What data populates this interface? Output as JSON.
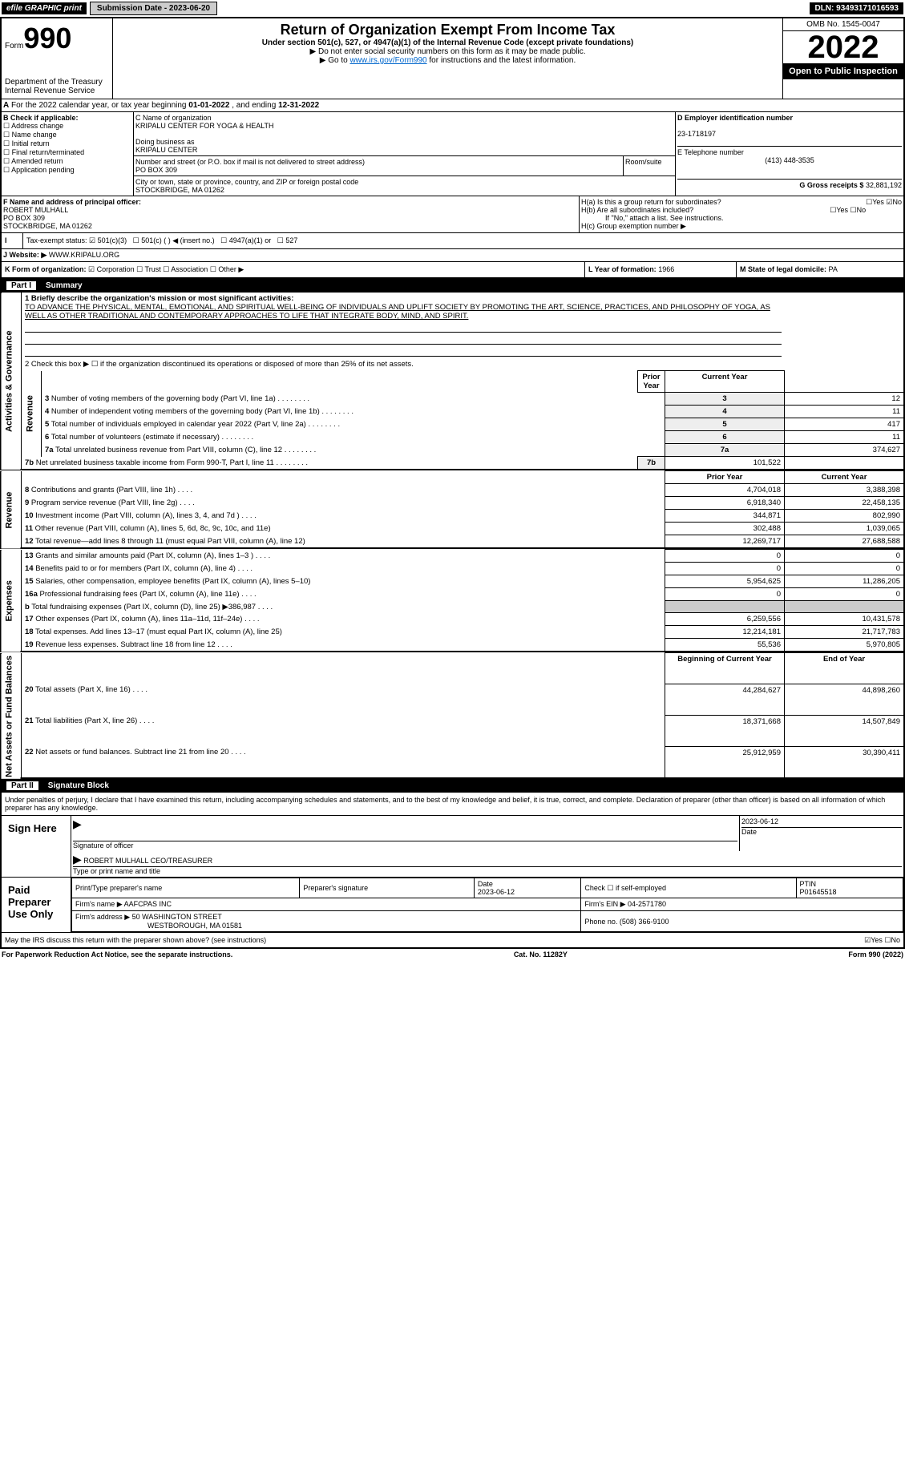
{
  "header": {
    "efile": "efile GRAPHIC print",
    "submission": "Submission Date - 2023-06-20",
    "dln": "DLN: 93493171016593"
  },
  "form": {
    "form_label": "Form",
    "form_number": "990",
    "title": "Return of Organization Exempt From Income Tax",
    "subtitle": "Under section 501(c), 527, or 4947(a)(1) of the Internal Revenue Code (except private foundations)",
    "note1": "▶ Do not enter social security numbers on this form as it may be made public.",
    "note2": "▶ Go to",
    "link": "www.irs.gov/Form990",
    "note3": "for instructions and the latest information.",
    "dept": "Department of the Treasury\nInternal Revenue Service",
    "omb": "OMB No. 1545-0047",
    "year": "2022",
    "inspection": "Open to Public Inspection"
  },
  "row_a": {
    "label": "A",
    "text": "For the 2022 calendar year, or tax year beginning",
    "begin": "01-01-2022",
    "mid": ", and ending",
    "end": "12-31-2022"
  },
  "section_b": {
    "b_label": "B Check if applicable:",
    "b_items": [
      "Address change",
      "Name change",
      "Initial return",
      "Final return/terminated",
      "Amended return",
      "Application pending"
    ],
    "c_name_label": "C Name of organization",
    "c_name": "KRIPALU CENTER FOR YOGA & HEALTH",
    "c_dba_label": "Doing business as",
    "c_dba": "KRIPALU CENTER",
    "c_addr_label": "Number and street (or P.O. box if mail is not delivered to street address)",
    "c_addr": "PO BOX 309",
    "c_room": "Room/suite",
    "c_city_label": "City or town, state or province, country, and ZIP or foreign postal code",
    "c_city": "STOCKBRIDGE, MA  01262",
    "d_label": "D Employer identification number",
    "d_ein": "23-1718197",
    "e_label": "E Telephone number",
    "e_phone": "(413) 448-3535",
    "g_label": "G Gross receipts $",
    "g_amount": "32,881,192"
  },
  "section_f": {
    "f_label": "F Name and address of principal officer:",
    "f_name": "ROBERT MULHALL",
    "f_addr1": "PO BOX 309",
    "f_addr2": "STOCKBRIDGE, MA  01262",
    "h_a": "H(a)  Is this a group return for subordinates?",
    "h_b": "H(b)  Are all subordinates included?",
    "h_b_note": "If \"No,\" attach a list. See instructions.",
    "h_c": "H(c)  Group exemption number ▶",
    "yes": "Yes",
    "no": "No"
  },
  "section_i": {
    "i_label": "I",
    "tax_exempt": "Tax-exempt status:",
    "opt1": "501(c)(3)",
    "opt2": "501(c) (  ) ◀ (insert no.)",
    "opt3": "4947(a)(1) or",
    "opt4": "527"
  },
  "section_j": {
    "j_label": "J",
    "website_label": "Website: ▶",
    "website": "WWW.KRIPALU.ORG"
  },
  "section_k": {
    "k_label": "K Form of organization:",
    "k_opts": [
      "Corporation",
      "Trust",
      "Association",
      "Other ▶"
    ],
    "l_label": "L Year of formation:",
    "l_year": "1966",
    "m_label": "M State of legal domicile:",
    "m_state": "PA"
  },
  "part1": {
    "header_num": "Part I",
    "header_title": "Summary",
    "line1_label": "1 Briefly describe the organization's mission or most significant activities:",
    "line1_text": "TO ADVANCE THE PHYSICAL, MENTAL, EMOTIONAL, AND SPIRITUAL WELL-BEING OF INDIVIDUALS AND UPLIFT SOCIETY BY PROMOTING THE ART, SCIENCE, PRACTICES, AND PHILOSOPHY OF YOGA, AS WELL AS OTHER TRADITIONAL AND CONTEMPORARY APPROACHES TO LIFE THAT INTEGRATE BODY, MIND, AND SPIRIT.",
    "line2": "2  Check this box ▶ ☐  if the organization discontinued its operations or disposed of more than 25% of its net assets.",
    "rows_gov": [
      {
        "n": "3",
        "t": "Number of voting members of the governing body (Part VI, line 1a)",
        "v": "12"
      },
      {
        "n": "4",
        "t": "Number of independent voting members of the governing body (Part VI, line 1b)",
        "v": "11"
      },
      {
        "n": "5",
        "t": "Total number of individuals employed in calendar year 2022 (Part V, line 2a)",
        "v": "417"
      },
      {
        "n": "6",
        "t": "Total number of volunteers (estimate if necessary)",
        "v": "11"
      },
      {
        "n": "7a",
        "t": "Total unrelated business revenue from Part VIII, column (C), line 12",
        "v": "374,627"
      },
      {
        "n": "7b",
        "t": "Net unrelated business taxable income from Form 990-T, Part I, line 11",
        "v": "101,522"
      }
    ],
    "col_headers": {
      "prior": "Prior Year",
      "current": "Current Year"
    },
    "rows_rev": [
      {
        "n": "8",
        "t": "Contributions and grants (Part VIII, line 1h)",
        "p": "4,704,018",
        "c": "3,388,398"
      },
      {
        "n": "9",
        "t": "Program service revenue (Part VIII, line 2g)",
        "p": "6,918,340",
        "c": "22,458,135"
      },
      {
        "n": "10",
        "t": "Investment income (Part VIII, column (A), lines 3, 4, and 7d )",
        "p": "344,871",
        "c": "802,990"
      },
      {
        "n": "11",
        "t": "Other revenue (Part VIII, column (A), lines 5, 6d, 8c, 9c, 10c, and 11e)",
        "p": "302,488",
        "c": "1,039,065"
      },
      {
        "n": "12",
        "t": "Total revenue—add lines 8 through 11 (must equal Part VIII, column (A), line 12)",
        "p": "12,269,717",
        "c": "27,688,588"
      }
    ],
    "rows_exp": [
      {
        "n": "13",
        "t": "Grants and similar amounts paid (Part IX, column (A), lines 1–3 )",
        "p": "0",
        "c": "0"
      },
      {
        "n": "14",
        "t": "Benefits paid to or for members (Part IX, column (A), line 4)",
        "p": "0",
        "c": "0"
      },
      {
        "n": "15",
        "t": "Salaries, other compensation, employee benefits (Part IX, column (A), lines 5–10)",
        "p": "5,954,625",
        "c": "11,286,205"
      },
      {
        "n": "16a",
        "t": "Professional fundraising fees (Part IX, column (A), line 11e)",
        "p": "0",
        "c": "0"
      },
      {
        "n": "b",
        "t": "Total fundraising expenses (Part IX, column (D), line 25) ▶386,987",
        "p": "",
        "c": "",
        "shade": true
      },
      {
        "n": "17",
        "t": "Other expenses (Part IX, column (A), lines 11a–11d, 11f–24e)",
        "p": "6,259,556",
        "c": "10,431,578"
      },
      {
        "n": "18",
        "t": "Total expenses. Add lines 13–17 (must equal Part IX, column (A), line 25)",
        "p": "12,214,181",
        "c": "21,717,783"
      },
      {
        "n": "19",
        "t": "Revenue less expenses. Subtract line 18 from line 12",
        "p": "55,536",
        "c": "5,970,805"
      }
    ],
    "col_headers2": {
      "begin": "Beginning of Current Year",
      "end": "End of Year"
    },
    "rows_net": [
      {
        "n": "20",
        "t": "Total assets (Part X, line 16)",
        "p": "44,284,627",
        "c": "44,898,260"
      },
      {
        "n": "21",
        "t": "Total liabilities (Part X, line 26)",
        "p": "18,371,668",
        "c": "14,507,849"
      },
      {
        "n": "22",
        "t": "Net assets or fund balances. Subtract line 21 from line 20",
        "p": "25,912,959",
        "c": "30,390,411"
      }
    ],
    "side_labels": {
      "gov": "Activities & Governance",
      "rev": "Revenue",
      "exp": "Expenses",
      "net": "Net Assets or Fund Balances"
    }
  },
  "part2": {
    "header_num": "Part II",
    "header_title": "Signature Block",
    "penalty": "Under penalties of perjury, I declare that I have examined this return, including accompanying schedules and statements, and to the best of my knowledge and belief, it is true, correct, and complete. Declaration of preparer (other than officer) is based on all information of which preparer has any knowledge.",
    "sign_here": "Sign Here",
    "sig_of_officer": "Signature of officer",
    "sig_date": "2023-06-12",
    "date_label": "Date",
    "officer_name": "ROBERT MULHALL CEO/TREASURER",
    "type_label": "Type or print name and title",
    "paid": "Paid Preparer Use Only",
    "prep_name_label": "Print/Type preparer's name",
    "prep_sig_label": "Preparer's signature",
    "prep_date_label": "Date",
    "prep_date": "2023-06-12",
    "check_if": "Check ☐ if self-employed",
    "ptin_label": "PTIN",
    "ptin": "P01645518",
    "firm_name_label": "Firm's name    ▶",
    "firm_name": "AAFCPAS INC",
    "firm_ein_label": "Firm's EIN ▶",
    "firm_ein": "04-2571780",
    "firm_addr_label": "Firm's address ▶",
    "firm_addr1": "50 WASHINGTON STREET",
    "firm_addr2": "WESTBOROUGH, MA  01581",
    "firm_phone_label": "Phone no.",
    "firm_phone": "(508) 366-9100",
    "may_irs": "May the IRS discuss this return with the preparer shown above? (see instructions)"
  },
  "footer": {
    "paperwork": "For Paperwork Reduction Act Notice, see the separate instructions.",
    "cat": "Cat. No. 11282Y",
    "form": "Form 990 (2022)"
  }
}
